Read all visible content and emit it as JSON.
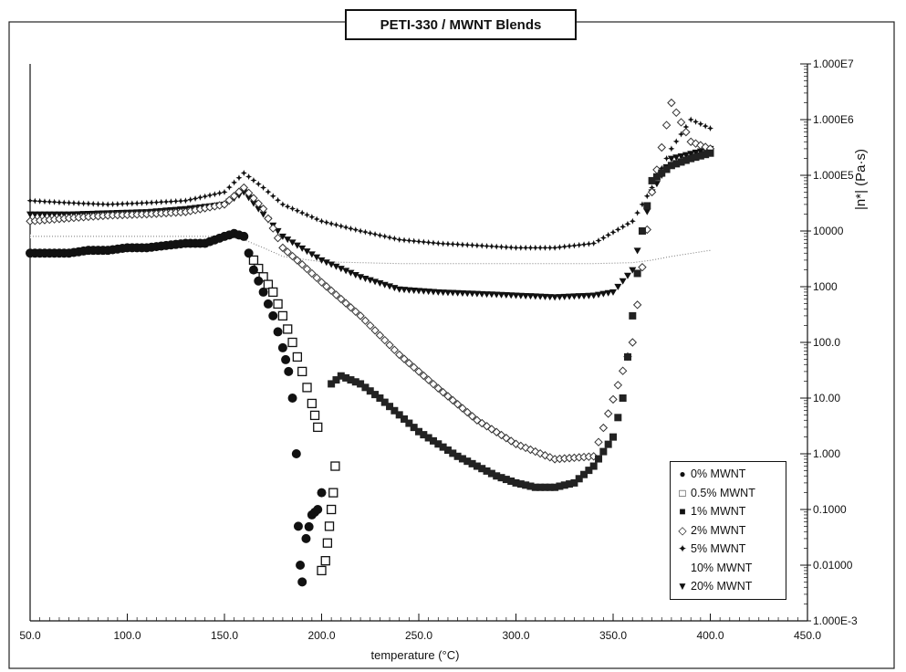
{
  "chart_data": {
    "type": "scatter",
    "title": "PETI-330 / MWNT Blends",
    "xlabel": "temperature (°C)",
    "ylabel": "|n*| (Pa·s)",
    "xlim": [
      50,
      450
    ],
    "ylim": [
      0.001,
      10000000
    ],
    "yscale": "log",
    "grid": false,
    "legend_position": "bottom-right",
    "x_ticks": [
      "50.0",
      "100.0",
      "150.0",
      "200.0",
      "250.0",
      "300.0",
      "350.0",
      "400.0",
      "450.0"
    ],
    "y_ticks": [
      "1.000E-3",
      "0.01000",
      "0.1000",
      "1.000",
      "10.00",
      "100.0",
      "1000",
      "10000",
      "1.000E5",
      "1.000E6",
      "1.000E7"
    ],
    "series": [
      {
        "name": "0% MWNT",
        "marker": "filled-circle",
        "x": [
          50,
          60,
          70,
          80,
          90,
          100,
          110,
          120,
          130,
          140,
          150,
          155,
          160,
          165,
          170,
          175,
          180,
          183,
          185,
          187,
          188,
          189,
          190,
          192,
          195,
          198,
          200
        ],
        "y": [
          4000,
          4000,
          4000,
          4500,
          4500,
          5000,
          5000,
          5500,
          6000,
          6000,
          8000,
          9000,
          8000,
          2000,
          800,
          300,
          80,
          30,
          10,
          1,
          0.05,
          0.01,
          0.005,
          0.03,
          0.08,
          0.1,
          0.2
        ]
      },
      {
        "name": "0.5% MWNT",
        "marker": "open-square",
        "x": [
          165,
          170,
          175,
          180,
          185,
          190,
          195,
          198,
          200,
          202,
          203,
          204,
          205,
          206,
          207
        ],
        "y": [
          3000,
          1500,
          800,
          300,
          100,
          30,
          8,
          3,
          0.008,
          0.012,
          0.025,
          0.05,
          0.1,
          0.2,
          0.6
        ]
      },
      {
        "name": "1% MWNT",
        "marker": "filled-square",
        "x": [
          205,
          210,
          220,
          230,
          240,
          250,
          260,
          270,
          280,
          290,
          300,
          310,
          320,
          330,
          340,
          350,
          355,
          360,
          365,
          370,
          380,
          390,
          400
        ],
        "y": [
          18,
          25,
          18,
          10,
          5,
          2.5,
          1.5,
          0.9,
          0.6,
          0.4,
          0.3,
          0.25,
          0.25,
          0.3,
          0.6,
          2,
          10,
          300,
          10000,
          80000,
          150000,
          200000,
          250000
        ]
      },
      {
        "name": "2% MWNT",
        "marker": "open-diamond",
        "x": [
          50,
          70,
          90,
          110,
          130,
          150,
          160,
          170,
          180,
          190,
          200,
          210,
          220,
          240,
          260,
          280,
          300,
          320,
          340,
          360,
          370,
          380,
          390,
          400
        ],
        "y": [
          15000,
          17000,
          19000,
          20000,
          22000,
          30000,
          60000,
          25000,
          5000,
          2500,
          1200,
          600,
          300,
          60,
          15,
          4,
          1.5,
          0.8,
          0.9,
          100,
          50000,
          2000000,
          400000,
          300000
        ]
      },
      {
        "name": "5% MWNT",
        "marker": "star",
        "x": [
          50,
          70,
          90,
          110,
          130,
          150,
          160,
          170,
          180,
          200,
          220,
          240,
          260,
          280,
          300,
          320,
          340,
          360,
          370,
          380,
          390,
          400
        ],
        "y": [
          35000,
          32000,
          30000,
          32000,
          35000,
          50000,
          110000,
          60000,
          30000,
          15000,
          10000,
          7000,
          6000,
          5500,
          5000,
          5000,
          6000,
          15000,
          60000,
          300000,
          1000000,
          700000
        ]
      },
      {
        "name": "10% MWNT",
        "marker": "none",
        "x": [
          50,
          70,
          90,
          110,
          130,
          150,
          160,
          170,
          180,
          200,
          220,
          240,
          260,
          280,
          300,
          320,
          340,
          360,
          370,
          380,
          400
        ],
        "y": [
          8000,
          8000,
          8000,
          8000,
          8000,
          8000,
          7000,
          5000,
          3500,
          2800,
          2700,
          2600,
          2600,
          2600,
          2600,
          2600,
          2600,
          2700,
          3000,
          3500,
          4500
        ]
      },
      {
        "name": "20% MWNT",
        "marker": "triangle-down",
        "x": [
          50,
          70,
          90,
          110,
          130,
          150,
          160,
          170,
          180,
          200,
          220,
          240,
          260,
          280,
          300,
          320,
          340,
          350,
          360,
          370,
          380,
          400
        ],
        "y": [
          20000,
          20000,
          21000,
          22000,
          25000,
          30000,
          50000,
          20000,
          8000,
          3000,
          1500,
          900,
          800,
          750,
          700,
          650,
          700,
          800,
          2000,
          50000,
          200000,
          300000
        ]
      }
    ]
  }
}
